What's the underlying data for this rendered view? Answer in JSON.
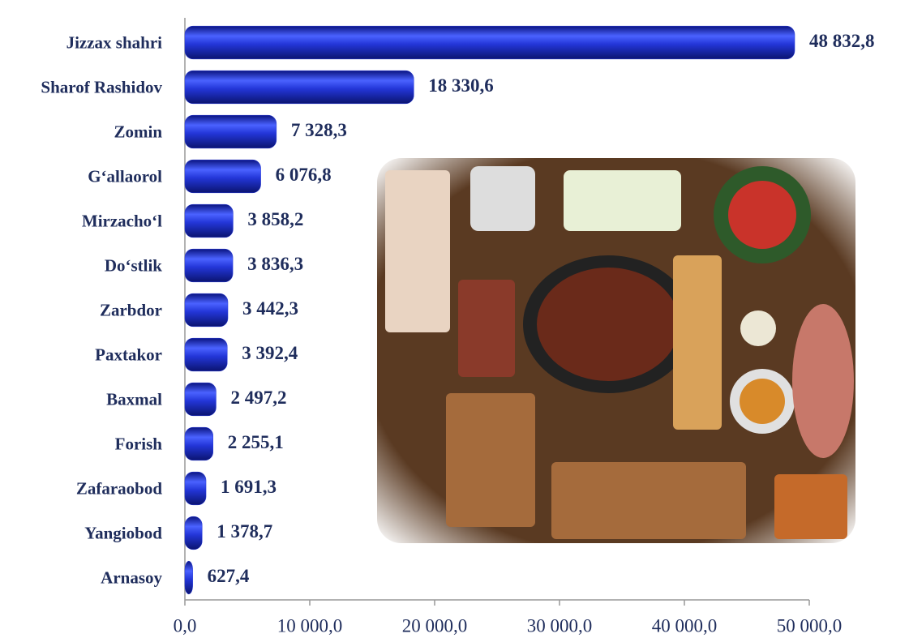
{
  "chart_data": {
    "type": "bar",
    "orientation": "horizontal",
    "categories": [
      "Jizzax shahri",
      "Sharof Rashidov",
      "Zomin",
      "G‘allaorol",
      "Mirzacho‘l",
      "Do‘stlik",
      "Zarbdor",
      "Paxtakor",
      "Baxmal",
      "Forish",
      "Zafaraobod",
      "Yangiobod",
      "Arnasoy"
    ],
    "values": [
      48832.8,
      18330.6,
      7328.3,
      6076.8,
      3858.2,
      3836.3,
      3442.3,
      3392.4,
      2497.2,
      2255.1,
      1691.3,
      1378.7,
      627.4
    ],
    "value_labels": [
      "48 832,8",
      "18 330,6",
      "7 328,3",
      "6 076,8",
      "3 858,2",
      "3 836,3",
      "3 442,3",
      "3 392,4",
      "2 497,2",
      "2 255,1",
      "1 691,3",
      "1 378,7",
      "627,4"
    ],
    "color": "#2336d8",
    "xlim": [
      0,
      50000
    ],
    "xticks": [
      {
        "value": 0,
        "label": "0,0"
      },
      {
        "value": 10000,
        "label": "10 000,0"
      },
      {
        "value": 20000,
        "label": "20 000,0"
      },
      {
        "value": 30000,
        "label": "30 000,0"
      },
      {
        "value": 40000,
        "label": "40 000,0"
      },
      {
        "value": 50000,
        "label": "50 000,0"
      }
    ],
    "grid": false
  }
}
